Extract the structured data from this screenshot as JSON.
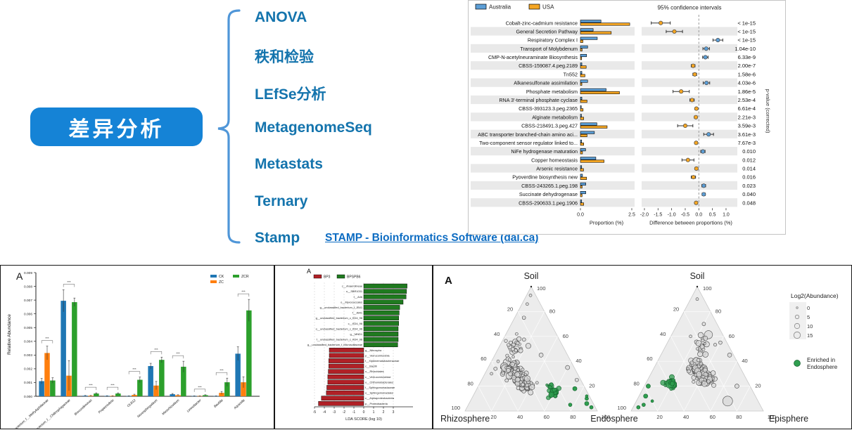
{
  "flowchart": {
    "node_label": "差异分析",
    "methods": [
      "ANOVA",
      "秩和检验",
      "LEfSe分析",
      "MetagenomeSeq",
      "Metastats",
      "Ternary",
      "Stamp"
    ],
    "link_text": "STAMP - Bioinformatics Software (dal.ca)",
    "colors": {
      "node_bg": "#1583d6",
      "node_text": "#ffffff",
      "method_text": "#1474ad",
      "link": "#0d6cc2",
      "bracket": "#4f96d8"
    }
  },
  "chart_data": [
    {
      "type": "bar",
      "subtype": "extended_errorbar",
      "id": "stamp-extended-errorbar",
      "title": "95% confidence intervals",
      "legend": [
        {
          "name": "Australia",
          "color": "#5c9fd7"
        },
        {
          "name": "USA",
          "color": "#f5a623"
        }
      ],
      "features": [
        "Cobalt-zinc-cadmium resistance",
        "General Secretion Pathway",
        "Respiratory Complex I",
        "Transport of Molybdenum",
        "CMP-N-acetylneuraminate Biosynthesis",
        "CBSS-159087.4.peg.2189",
        "Tn552",
        "Alkanesulfonate assimilation",
        "Phosphate metabolism",
        "RNA 3'-terminal phosphate cyclase",
        "CBSS-393123.3.peg.2365",
        "Alginate metabolism",
        "CBSS-218491.3.peg.427",
        "ABC transporter branched-chain amino aci...",
        "Two-component sensor regulator linked to...",
        "NiFe hydrogenase maturation",
        "Copper homeostasis",
        "Arsenic resistance",
        "Pyoverdine biosynthesis new",
        "CBSS-243265.1.peg.198",
        "Succinate dehydrogenase",
        "CBSS-290633.1.peg.1906"
      ],
      "series": [
        {
          "name": "Australia",
          "values": [
            1.0,
            0.62,
            0.82,
            0.35,
            0.3,
            0.07,
            0.07,
            0.35,
            1.25,
            0.07,
            0.04,
            0.05,
            0.8,
            0.68,
            0.06,
            0.25,
            0.75,
            0.06,
            0.1,
            0.26,
            0.26,
            0.06
          ]
        },
        {
          "name": "USA",
          "values": [
            2.4,
            1.5,
            0.12,
            0.08,
            0.06,
            0.28,
            0.22,
            0.07,
            1.9,
            0.32,
            0.13,
            0.16,
            1.3,
            0.32,
            0.16,
            0.1,
            1.15,
            0.15,
            0.3,
            0.08,
            0.08,
            0.16
          ]
        }
      ],
      "difference": {
        "values": [
          -1.4,
          -0.9,
          0.7,
          0.27,
          0.24,
          -0.21,
          -0.15,
          0.28,
          -0.65,
          -0.25,
          -0.09,
          -0.11,
          -0.5,
          0.36,
          -0.1,
          0.15,
          -0.4,
          -0.09,
          -0.2,
          0.18,
          0.18,
          -0.1
        ],
        "ci": [
          0.35,
          0.3,
          0.18,
          0.12,
          0.1,
          0.07,
          0.07,
          0.12,
          0.3,
          0.08,
          0.05,
          0.05,
          0.28,
          0.18,
          0.05,
          0.08,
          0.22,
          0.05,
          0.08,
          0.07,
          0.06,
          0.05
        ],
        "enriched": [
          "USA",
          "USA",
          "Australia",
          "Australia",
          "Australia",
          "USA",
          "USA",
          "Australia",
          "USA",
          "USA",
          "USA",
          "USA",
          "USA",
          "Australia",
          "USA",
          "Australia",
          "USA",
          "USA",
          "USA",
          "Australia",
          "Australia",
          "USA"
        ]
      },
      "p_values": [
        "< 1e-15",
        "< 1e-15",
        "< 1e-15",
        "1.04e-10",
        "6.33e-9",
        "2.00e-7",
        "1.58e-6",
        "4.03e-6",
        "1.86e-5",
        "2.53e-4",
        "6.61e-4",
        "2.21e-3",
        "3.59e-3",
        "3.61e-3",
        "7.67e-3",
        "0.010",
        "0.012",
        "0.014",
        "0.016",
        "0.023",
        "0.040",
        "0.048"
      ],
      "xlabel_left": "Proportion (%)",
      "xlim_left": [
        0,
        2.5
      ],
      "xticks_left": [
        "0.0",
        "2.5"
      ],
      "xlabel_right": "Difference between proportions (%)",
      "xlim_right": [
        -2,
        1
      ],
      "xticks_right": [
        "-2.0",
        "-1.5",
        "-1.0",
        "-0.5",
        "0.0",
        "0.5",
        "1.0"
      ],
      "right_axis_label": "p-value (corrected)"
    },
    {
      "type": "bar",
      "subtype": "grouped_vertical",
      "id": "relative-abundance-bars",
      "panel_letter": "A",
      "ylabel": "Relative Abundance",
      "ylim": [
        0,
        0.009
      ],
      "ytick_step": 0.001,
      "legend": [
        {
          "name": "CK",
          "color": "#1f77b4"
        },
        {
          "name": "ZC",
          "color": "#ff7f0e"
        },
        {
          "name": "ZCR",
          "color": "#2ca02c"
        }
      ],
      "categories": [
        "unclassified_bacterium_f__Methylophilaceae",
        "unclassified_bacterium_f__Chitinophagaceae",
        "Brevundimonas",
        "Propionivibrio",
        "OLB12",
        "Novosphingobium",
        "Mesorhizobium",
        "Limnobacter",
        "Bauldia",
        "Aquicella"
      ],
      "series": [
        {
          "name": "CK",
          "values": [
            0.0011,
            0.00695,
            4e-05,
            3e-05,
            2e-05,
            0.0022,
            0.00015,
            2e-05,
            2e-05,
            0.0031
          ],
          "errors": [
            0.0002,
            0.0008,
            2e-05,
            1e-05,
            1e-05,
            0.0002,
            5e-05,
            1e-05,
            1e-05,
            0.0005
          ]
        },
        {
          "name": "ZC",
          "values": [
            0.00315,
            0.0015,
            4e-05,
            3e-05,
            0.0001,
            0.00078,
            8e-05,
            2e-05,
            0.00025,
            0.00102
          ],
          "errors": [
            0.0005,
            0.0011,
            2e-05,
            1e-05,
            5e-05,
            0.0003,
            3e-05,
            1e-05,
            0.0001,
            0.0004
          ]
        },
        {
          "name": "ZCR",
          "values": [
            0.00115,
            0.00685,
            0.0002,
            0.0002,
            0.0012,
            0.00265,
            0.00215,
            8e-05,
            0.00102,
            0.00625
          ],
          "errors": [
            0.0002,
            0.0003,
            5e-05,
            5e-05,
            0.0002,
            0.0002,
            0.0004,
            3e-05,
            0.0003,
            0.0008
          ]
        }
      ],
      "significance": [
        "***",
        "***",
        "***",
        "***",
        "***",
        "***",
        "***",
        "***",
        "***",
        "***"
      ]
    },
    {
      "type": "bar",
      "subtype": "lda_horizontal",
      "id": "lefse-lda",
      "panel_letter": "A",
      "xlabel": "LDA SCORE (log 10)",
      "xticks": [
        -5,
        -4,
        -3,
        -2,
        -1,
        0,
        1,
        2,
        3
      ],
      "legend": [
        {
          "name": "BP3",
          "color": "#b02026"
        },
        {
          "name": "BPSPB6",
          "color": "#1f7a1f"
        }
      ],
      "groups": [
        {
          "name": "BPSPB6",
          "color": "#1f7a1f",
          "items": [
            [
              "c__Anaerolineae",
              4.4
            ],
            [
              "o__SBR1031",
              4.35
            ],
            [
              "f__A4b",
              4.3
            ],
            [
              "o__Myxococcales",
              4.0
            ],
            [
              "g__unclassified_bacterium_f_JB41",
              3.65
            ],
            [
              "f__JB41",
              3.6
            ],
            [
              "g__unclassified_bacterium_c_KD4_96",
              3.55
            ],
            [
              "c__KD4_96",
              3.55
            ],
            [
              "o__unclassified_bacterium_c_KD4_96",
              3.5
            ],
            [
              "g__MND1",
              3.5
            ],
            [
              "f__unclassified_bacterium_c_KD4_96",
              3.5
            ],
            [
              "g__unclassified_bacterium_f_Microscillaceae",
              3.45
            ]
          ]
        },
        {
          "name": "BP3",
          "color": "#b02026",
          "items": [
            [
              "g__Nitrospira",
              -3.5
            ],
            [
              "p__Verrucomicrobia",
              -3.5
            ],
            [
              "f__Xiphinematobacteraceae",
              -3.55
            ],
            [
              "c__Bacilli",
              -3.55
            ],
            [
              "o__Rhizobiales",
              -3.6
            ],
            [
              "c__Verrucomicrobiae",
              -3.65
            ],
            [
              "o__Chthoniobacterales",
              -3.65
            ],
            [
              "f__Sphingomonadaceae",
              -3.75
            ],
            [
              "o__Sphingomonadales",
              -3.8
            ],
            [
              "c__Alphaproteobacteria",
              -4.3
            ],
            [
              "p__Proteobacteria",
              -4.6
            ]
          ]
        }
      ]
    },
    {
      "type": "scatter",
      "subtype": "ternary",
      "id": "ternary-plots",
      "panel_letter": "A",
      "axis_ticks": [
        20,
        40,
        60,
        80,
        100
      ],
      "size_legend": {
        "title": "Log2(Abundance)",
        "entries": [
          "0",
          "5",
          "10",
          "15"
        ]
      },
      "color_legend": {
        "lines": [
          "Enriched in",
          "Endosphere"
        ],
        "color": "#2f9e4f"
      },
      "gray_point_color": "#d8d8d8",
      "plots": [
        {
          "top": "Soil",
          "bottom_left": "Rhizosphere",
          "bottom_right": "Endosphere",
          "gray_clusters": [
            {
              "n": 150,
              "center": [
                28,
                46,
                26
              ],
              "spread": 6,
              "elong": 13
            },
            {
              "n": 22,
              "center": [
                52,
                36,
                12
              ],
              "spread": 7,
              "elong": 4
            }
          ],
          "gray_points": [
            [
              93,
              4,
              3,
              2
            ],
            [
              75,
              18,
              7,
              2.5
            ],
            [
              62,
              30,
              8,
              2
            ],
            [
              55,
              38,
              7,
              2.5
            ],
            [
              40,
              55,
              5,
              2
            ],
            [
              34,
              60,
              6,
              2.5
            ],
            [
              30,
              65,
              5,
              2
            ],
            [
              45,
              20,
              35,
              3
            ],
            [
              35,
              5,
              60,
              3
            ],
            [
              25,
              3,
              72,
              2.5
            ],
            [
              86,
              10,
              4,
              2
            ]
          ],
          "green_cluster": {
            "n": 26,
            "center": [
              16,
              26,
              58
            ],
            "spread": 4,
            "elong": 4
          },
          "green_points": [
            [
              6,
              5,
              89,
              3
            ],
            [
              10,
              3,
              87,
              2.5
            ],
            [
              3,
              3,
              94,
              2.5
            ],
            [
              18,
              8,
              74,
              3
            ],
            [
              5,
              18,
              77,
              2.5
            ],
            [
              12,
              2,
              86,
              2
            ]
          ]
        },
        {
          "top": "Soil",
          "bottom_left": "Endosphere",
          "bottom_right": "Episphere",
          "gray_clusters": [
            {
              "n": 150,
              "center": [
                30,
                32,
                38
              ],
              "spread": 6,
              "elong": 10
            },
            {
              "n": 20,
              "center": [
                55,
                18,
                27
              ],
              "spread": 8,
              "elong": 4
            }
          ],
          "gray_points": [
            [
              90,
              5,
              5,
              2
            ],
            [
              70,
              10,
              20,
              2.5
            ],
            [
              55,
              5,
              40,
              2.5
            ],
            [
              45,
              3,
              52,
              3
            ],
            [
              60,
              25,
              15,
              2
            ],
            [
              8,
              23,
              69,
              7
            ],
            [
              20,
              10,
              70,
              3
            ]
          ],
          "green_cluster": {
            "n": 22,
            "center": [
              22,
              59,
              19
            ],
            "spread": 4,
            "elong": 3
          },
          "green_points": [
            [
              5,
              88,
              7,
              2.5
            ],
            [
              12,
              83,
              5,
              3
            ],
            [
              3,
              93,
              4,
              2.5
            ],
            [
              20,
              77,
              3,
              3
            ],
            [
              8,
              80,
              12,
              2
            ]
          ]
        }
      ]
    }
  ]
}
